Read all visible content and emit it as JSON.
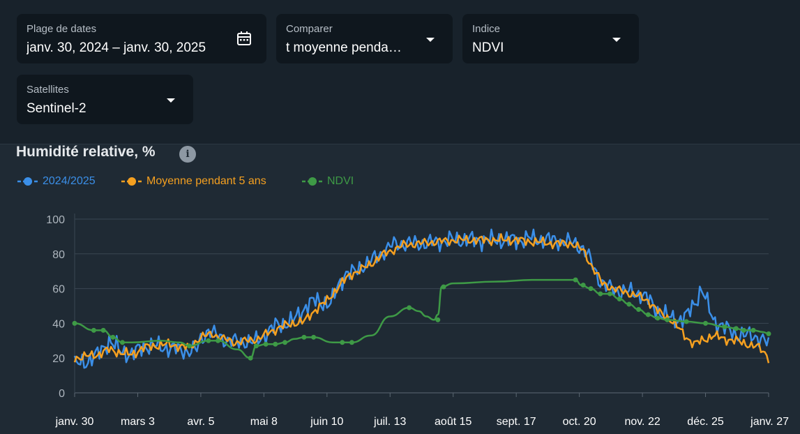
{
  "filters": {
    "date_range": {
      "label": "Plage de dates",
      "value": "janv. 30, 2024 – janv. 30, 2025",
      "icon": "calendar-icon"
    },
    "compare": {
      "label": "Comparer",
      "value": "t moyenne penda…",
      "icon": "chevron-down-icon"
    },
    "index": {
      "label": "Indice",
      "value": "NDVI",
      "icon": "chevron-down-icon"
    },
    "satellites": {
      "label": "Satellites",
      "value": "Sentinel-2",
      "icon": "chevron-down-icon"
    }
  },
  "chart_title": "Humidité relative, %",
  "info_icon": "i",
  "chart_data": {
    "type": "line",
    "title": "Humidité relative, %",
    "ylim": [
      0,
      100
    ],
    "yticks": [
      0,
      20,
      40,
      60,
      80,
      100
    ],
    "xlim": [
      0,
      363
    ],
    "xticks": [
      {
        "label": "janv. 30",
        "day": 0
      },
      {
        "label": "mars 3",
        "day": 33
      },
      {
        "label": "avr. 5",
        "day": 66
      },
      {
        "label": "mai 8",
        "day": 99
      },
      {
        "label": "juin 10",
        "day": 132
      },
      {
        "label": "juil. 13",
        "day": 165
      },
      {
        "label": "août 15",
        "day": 198
      },
      {
        "label": "sept. 17",
        "day": 231
      },
      {
        "label": "oct. 20",
        "day": 264
      },
      {
        "label": "nov. 22",
        "day": 297
      },
      {
        "label": "déc. 25",
        "day": 330
      },
      {
        "label": "janv. 27",
        "day": 363
      }
    ],
    "grid": true,
    "legend_position": "top-left",
    "series": [
      {
        "name": "2024/2025",
        "color": "#3b8fe8",
        "anchors": [
          [
            0,
            16
          ],
          [
            6,
            18
          ],
          [
            12,
            22
          ],
          [
            18,
            30
          ],
          [
            24,
            24
          ],
          [
            30,
            22
          ],
          [
            36,
            27
          ],
          [
            42,
            27
          ],
          [
            48,
            26
          ],
          [
            54,
            25
          ],
          [
            60,
            24
          ],
          [
            64,
            25
          ],
          [
            66,
            31
          ],
          [
            70,
            36
          ],
          [
            74,
            33
          ],
          [
            78,
            31
          ],
          [
            82,
            30
          ],
          [
            86,
            29
          ],
          [
            90,
            30
          ],
          [
            94,
            29
          ],
          [
            98,
            32
          ],
          [
            102,
            36
          ],
          [
            106,
            39
          ],
          [
            110,
            40
          ],
          [
            114,
            41
          ],
          [
            118,
            46
          ],
          [
            122,
            51
          ],
          [
            126,
            53
          ],
          [
            130,
            52
          ],
          [
            134,
            51
          ],
          [
            138,
            62
          ],
          [
            142,
            69
          ],
          [
            146,
            69
          ],
          [
            150,
            73
          ],
          [
            154,
            75
          ],
          [
            158,
            78
          ],
          [
            162,
            82
          ],
          [
            166,
            85
          ],
          [
            172,
            86
          ],
          [
            178,
            86
          ],
          [
            184,
            86
          ],
          [
            190,
            87
          ],
          [
            196,
            88
          ],
          [
            202,
            88
          ],
          [
            208,
            88
          ],
          [
            214,
            88
          ],
          [
            220,
            88
          ],
          [
            226,
            88
          ],
          [
            232,
            88
          ],
          [
            238,
            89
          ],
          [
            244,
            88
          ],
          [
            250,
            88
          ],
          [
            256,
            87
          ],
          [
            262,
            86
          ],
          [
            266,
            83
          ],
          [
            270,
            76
          ],
          [
            274,
            66
          ],
          [
            278,
            61
          ],
          [
            284,
            59
          ],
          [
            290,
            58
          ],
          [
            296,
            57
          ],
          [
            300,
            54
          ],
          [
            304,
            48
          ],
          [
            308,
            45
          ],
          [
            312,
            43
          ],
          [
            316,
            42
          ],
          [
            320,
            44
          ],
          [
            324,
            51
          ],
          [
            328,
            60
          ],
          [
            330,
            54
          ],
          [
            334,
            42
          ],
          [
            338,
            39
          ],
          [
            342,
            36
          ],
          [
            346,
            34
          ],
          [
            350,
            33
          ],
          [
            354,
            33
          ],
          [
            358,
            32
          ],
          [
            363,
            28
          ]
        ],
        "noise": 6
      },
      {
        "name": "Moyenne pendant 5 ans",
        "color": "#f5a020",
        "anchors": [
          [
            0,
            20
          ],
          [
            6,
            21
          ],
          [
            12,
            22
          ],
          [
            18,
            25
          ],
          [
            24,
            23
          ],
          [
            30,
            22
          ],
          [
            36,
            26
          ],
          [
            42,
            27
          ],
          [
            48,
            28
          ],
          [
            54,
            27
          ],
          [
            60,
            26
          ],
          [
            66,
            32
          ],
          [
            72,
            34
          ],
          [
            78,
            31
          ],
          [
            84,
            29
          ],
          [
            90,
            30
          ],
          [
            96,
            31
          ],
          [
            102,
            35
          ],
          [
            108,
            38
          ],
          [
            114,
            40
          ],
          [
            120,
            41
          ],
          [
            126,
            48
          ],
          [
            132,
            53
          ],
          [
            138,
            61
          ],
          [
            144,
            68
          ],
          [
            150,
            71
          ],
          [
            156,
            75
          ],
          [
            162,
            80
          ],
          [
            166,
            82
          ],
          [
            172,
            85
          ],
          [
            180,
            86
          ],
          [
            190,
            87
          ],
          [
            200,
            88
          ],
          [
            210,
            88
          ],
          [
            220,
            88
          ],
          [
            230,
            88
          ],
          [
            240,
            87
          ],
          [
            250,
            86
          ],
          [
            260,
            86
          ],
          [
            266,
            82
          ],
          [
            270,
            74
          ],
          [
            276,
            63
          ],
          [
            282,
            60
          ],
          [
            288,
            58
          ],
          [
            294,
            56
          ],
          [
            300,
            53
          ],
          [
            306,
            46
          ],
          [
            312,
            42
          ],
          [
            316,
            37
          ],
          [
            320,
            32
          ],
          [
            324,
            28
          ],
          [
            328,
            30
          ],
          [
            334,
            33
          ],
          [
            340,
            31
          ],
          [
            346,
            30
          ],
          [
            352,
            28
          ],
          [
            358,
            26
          ],
          [
            362,
            22
          ],
          [
            363,
            20
          ]
        ],
        "noise": 3
      },
      {
        "name": "NDVI",
        "color": "#3e9a46",
        "points": [
          [
            0,
            40
          ],
          [
            10,
            36
          ],
          [
            15,
            36
          ],
          [
            20,
            32
          ],
          [
            25,
            29
          ],
          [
            30,
            29
          ],
          [
            45,
            30
          ],
          [
            55,
            29
          ],
          [
            60,
            27
          ],
          [
            70,
            30
          ],
          [
            75,
            30
          ],
          [
            85,
            25
          ],
          [
            92,
            20
          ],
          [
            95,
            27
          ],
          [
            100,
            28
          ],
          [
            105,
            28
          ],
          [
            110,
            29
          ],
          [
            115,
            31
          ],
          [
            120,
            32
          ],
          [
            125,
            32
          ],
          [
            135,
            29
          ],
          [
            140,
            29
          ],
          [
            145,
            29
          ],
          [
            155,
            33
          ],
          [
            165,
            44
          ],
          [
            175,
            49
          ],
          [
            180,
            47
          ],
          [
            184,
            44
          ],
          [
            188,
            42
          ],
          [
            190,
            45
          ],
          [
            192,
            61
          ],
          [
            198,
            63
          ],
          [
            220,
            64
          ],
          [
            240,
            65
          ],
          [
            255,
            65
          ],
          [
            260,
            65
          ],
          [
            262,
            65
          ],
          [
            265,
            62
          ],
          [
            270,
            60
          ],
          [
            275,
            57
          ],
          [
            280,
            57
          ],
          [
            285,
            54
          ],
          [
            290,
            51
          ],
          [
            295,
            48
          ],
          [
            300,
            45
          ],
          [
            305,
            43
          ],
          [
            310,
            42
          ],
          [
            320,
            41
          ],
          [
            330,
            40
          ],
          [
            340,
            38
          ],
          [
            346,
            37
          ],
          [
            350,
            36
          ],
          [
            355,
            36
          ],
          [
            360,
            35
          ],
          [
            363,
            34
          ]
        ],
        "markers": [
          [
            0,
            40
          ],
          [
            10,
            36
          ],
          [
            15,
            36
          ],
          [
            20,
            32
          ],
          [
            25,
            29
          ],
          [
            60,
            27
          ],
          [
            70,
            30
          ],
          [
            75,
            30
          ],
          [
            92,
            20
          ],
          [
            95,
            27
          ],
          [
            100,
            28
          ],
          [
            105,
            28
          ],
          [
            110,
            29
          ],
          [
            120,
            32
          ],
          [
            125,
            32
          ],
          [
            140,
            29
          ],
          [
            145,
            29
          ],
          [
            175,
            49
          ],
          [
            190,
            42
          ],
          [
            193,
            61
          ],
          [
            262,
            65
          ],
          [
            266,
            62
          ],
          [
            270,
            60
          ],
          [
            275,
            57
          ],
          [
            280,
            57
          ],
          [
            285,
            54
          ],
          [
            290,
            51
          ],
          [
            295,
            48
          ],
          [
            300,
            45
          ],
          [
            305,
            43
          ],
          [
            310,
            42
          ],
          [
            320,
            41
          ],
          [
            330,
            40
          ],
          [
            340,
            38
          ],
          [
            346,
            37
          ],
          [
            350,
            36
          ],
          [
            355,
            36
          ],
          [
            363,
            34
          ]
        ]
      }
    ]
  }
}
